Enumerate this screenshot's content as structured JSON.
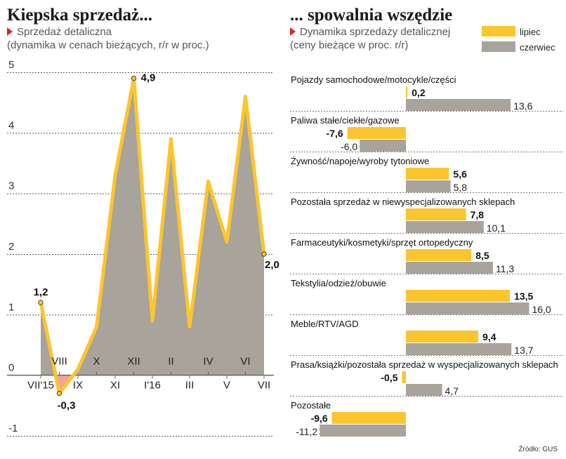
{
  "left": {
    "title": "Kiepska sprzedaż...",
    "subtitle_line1": "Sprzedaż detaliczna",
    "subtitle_line2": "(dynamika w cenach bieżących, r/r w proc.)"
  },
  "right": {
    "title": "... spowalnia wszędzie",
    "subtitle_line1": "Dynamika sprzedaży detalicznej",
    "subtitle_line2": "(ceny bieżące w proc. r/r)",
    "legend": [
      "lipiec",
      "czerwiec"
    ]
  },
  "source": "Źródło: GUS",
  "colors": {
    "line": "#fbc52e",
    "area": "#a8a39b",
    "negative_area": "#f3a49a",
    "bar_july": "#fbc52e",
    "bar_june": "#a8a39b",
    "accent_red": "#e2231a"
  },
  "chart_data": [
    {
      "type": "area",
      "ylim": [
        -1,
        5
      ],
      "yticks": [
        "5",
        "4",
        "3",
        "2",
        "1",
        "0",
        "-1"
      ],
      "x_labels_upper": [
        "VIII",
        "X",
        "XII",
        "II",
        "IV",
        "VI"
      ],
      "x_labels_lower": [
        "VII'15",
        "IX",
        "XI",
        "I'16",
        "III",
        "V",
        "VII"
      ],
      "x": [
        "VII'15",
        "VIII",
        "IX",
        "X",
        "XI",
        "XII",
        "I'16",
        "II",
        "III",
        "IV",
        "V",
        "VI",
        "VII"
      ],
      "values": [
        1.2,
        -0.3,
        0.1,
        0.8,
        3.3,
        4.9,
        0.9,
        3.9,
        0.8,
        3.2,
        2.2,
        4.6,
        2.0
      ],
      "data_labels": [
        {
          "index": 0,
          "text": "1,2"
        },
        {
          "index": 1,
          "text": "-0,3"
        },
        {
          "index": 5,
          "text": "4,9"
        },
        {
          "index": 12,
          "text": "2,0"
        }
      ]
    },
    {
      "type": "bar",
      "series": [
        {
          "name": "lipiec"
        },
        {
          "name": "czerwiec"
        }
      ],
      "categories": [
        {
          "label": "Pojazdy samochodowe/motocykle/części",
          "july": 0.2,
          "june": 13.6,
          "july_text": "0,2",
          "june_text": "13,6"
        },
        {
          "label": "Paliwa stałe/ciekłe/gazowe",
          "july": -7.6,
          "june": -6.0,
          "july_text": "-7,6",
          "june_text": "-6,0"
        },
        {
          "label": "Żywność/napoje/wyroby tytoniowe",
          "july": 5.6,
          "june": 5.8,
          "july_text": "5,6",
          "june_text": "5,8"
        },
        {
          "label": "Pozostała sprzedaż w niewyspecjalizowanych sklepach",
          "july": 7.8,
          "june": 10.1,
          "july_text": "7,8",
          "june_text": "10,1"
        },
        {
          "label": "Farmaceutyki/kosmetyki/sprzęt ortopedyczny",
          "july": 8.5,
          "june": 11.3,
          "july_text": "8,5",
          "june_text": "11,3"
        },
        {
          "label": "Tekstylia/odzież/obuwie",
          "july": 13.5,
          "june": 16.0,
          "july_text": "13,5",
          "june_text": "16,0"
        },
        {
          "label": "Meble/RTV/AGD",
          "july": 9.4,
          "june": 13.7,
          "july_text": "9,4",
          "june_text": "13,7"
        },
        {
          "label": "Prasa/książki/pozostała sprzedaż w wyspecjalizowanych sklepach",
          "july": -0.5,
          "june": 4.7,
          "july_text": "-0,5",
          "june_text": "4,7"
        },
        {
          "label": "Pozostałe",
          "july": -9.6,
          "june": -11.2,
          "july_text": "-9,6",
          "june_text": "-11,2"
        }
      ]
    }
  ]
}
